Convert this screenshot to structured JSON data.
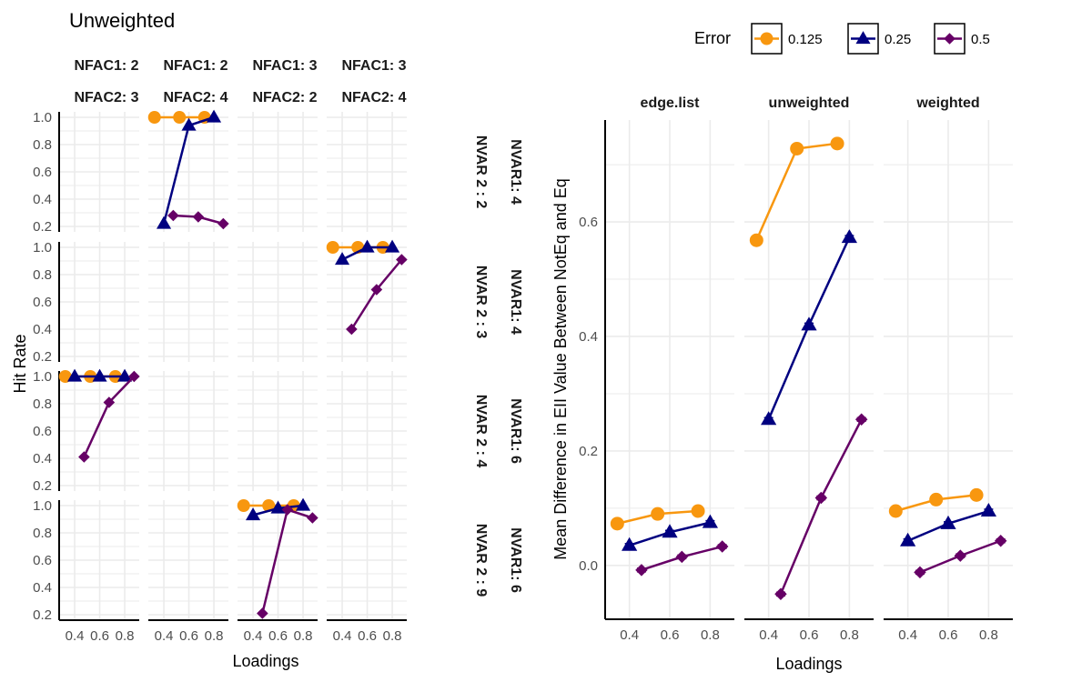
{
  "colors": {
    "0.125": "#F8970F",
    "0.25": "#000080",
    "0.5": "#660066",
    "grid": "#EBEBEB"
  },
  "chart_data": [
    {
      "type": "line",
      "title": "Unweighted",
      "xlabel": "Loadings",
      "ylabel": "Hit Rate",
      "x_ticks": [
        "0.4",
        "0.6",
        "0.8"
      ],
      "y_ticks": [
        "0.2",
        "0.4",
        "0.6",
        "0.8",
        "1.0"
      ],
      "xlim": [
        0.276,
        0.916
      ],
      "ylim": [
        0.16,
        1.04
      ],
      "dodge": 0.075,
      "col_strips": [
        {
          "line1": "NFAC1: 2",
          "line2": "NFAC2: 3"
        },
        {
          "line1": "NFAC1: 2",
          "line2": "NFAC2: 4"
        },
        {
          "line1": "NFAC1: 3",
          "line2": "NFAC2: 2"
        },
        {
          "line1": "NFAC1: 3",
          "line2": "NFAC2: 4"
        }
      ],
      "row_strips": [
        {
          "inner": "NVAR 2 : 2",
          "outer": "NVAR1: 4"
        },
        {
          "inner": "NVAR 2 : 3",
          "outer": "NVAR1: 4"
        },
        {
          "inner": "NVAR 2 : 4",
          "outer": "NVAR1: 6"
        },
        {
          "inner": "NVAR 2 : 9",
          "outer": "NVAR1: 6"
        }
      ],
      "panels": [
        {
          "row": 0,
          "col": 1,
          "series": [
            {
              "name": "0.125",
              "x": [
                0.4,
                0.6,
                0.8
              ],
              "y": [
                1.0,
                1.0,
                1.0
              ]
            },
            {
              "name": "0.25",
              "x": [
                0.4,
                0.6,
                0.8
              ],
              "y": [
                0.22,
                0.94,
                1.0
              ]
            },
            {
              "name": "0.5",
              "x": [
                0.4,
                0.6,
                0.8
              ],
              "y": [
                0.28,
                0.27,
                0.22
              ]
            }
          ]
        },
        {
          "row": 1,
          "col": 3,
          "series": [
            {
              "name": "0.125",
              "x": [
                0.4,
                0.6,
                0.8
              ],
              "y": [
                1.0,
                1.0,
                1.0
              ]
            },
            {
              "name": "0.25",
              "x": [
                0.4,
                0.6,
                0.8
              ],
              "y": [
                0.91,
                1.0,
                1.0
              ]
            },
            {
              "name": "0.5",
              "x": [
                0.4,
                0.6,
                0.8
              ],
              "y": [
                0.4,
                0.69,
                0.91
              ]
            }
          ]
        },
        {
          "row": 2,
          "col": 0,
          "series": [
            {
              "name": "0.125",
              "x": [
                0.4,
                0.6,
                0.8
              ],
              "y": [
                1.0,
                1.0,
                1.0
              ]
            },
            {
              "name": "0.25",
              "x": [
                0.4,
                0.6,
                0.8
              ],
              "y": [
                1.0,
                1.0,
                1.0
              ]
            },
            {
              "name": "0.5",
              "x": [
                0.4,
                0.6,
                0.8
              ],
              "y": [
                0.41,
                0.81,
                1.0
              ]
            }
          ]
        },
        {
          "row": 3,
          "col": 2,
          "series": [
            {
              "name": "0.125",
              "x": [
                0.4,
                0.6,
                0.8
              ],
              "y": [
                1.0,
                1.0,
                1.0
              ]
            },
            {
              "name": "0.25",
              "x": [
                0.4,
                0.6,
                0.8
              ],
              "y": [
                0.93,
                0.98,
                1.0
              ]
            },
            {
              "name": "0.5",
              "x": [
                0.4,
                0.6,
                0.8
              ],
              "y": [
                0.21,
                0.97,
                0.91
              ]
            }
          ]
        }
      ]
    },
    {
      "type": "line",
      "xlabel": "Loadings",
      "ylabel": "Mean Difference in EII Value Between NotEq and Eq",
      "x_ticks": [
        "0.4",
        "0.6",
        "0.8"
      ],
      "y_ticks": [
        "0.0",
        "0.2",
        "0.4",
        "0.6"
      ],
      "xlim": [
        0.28,
        0.92
      ],
      "ylim": [
        -0.094,
        0.778
      ],
      "dodge": 0.06,
      "legend": {
        "title": "Error",
        "position": "top-right",
        "entries": [
          "0.125",
          "0.25",
          "0.5"
        ]
      },
      "panels": [
        {
          "strip": "edge.list",
          "series": [
            {
              "name": "0.125",
              "x": [
                0.4,
                0.6,
                0.8
              ],
              "y": [
                0.073,
                0.09,
                0.095
              ]
            },
            {
              "name": "0.25",
              "x": [
                0.4,
                0.6,
                0.8
              ],
              "y": [
                0.035,
                0.058,
                0.075
              ]
            },
            {
              "name": "0.5",
              "x": [
                0.4,
                0.6,
                0.8
              ],
              "y": [
                -0.008,
                0.015,
                0.033
              ]
            }
          ]
        },
        {
          "strip": "unweighted",
          "series": [
            {
              "name": "0.125",
              "x": [
                0.4,
                0.6,
                0.8
              ],
              "y": [
                0.568,
                0.728,
                0.737
              ]
            },
            {
              "name": "0.25",
              "x": [
                0.4,
                0.6,
                0.8
              ],
              "y": [
                0.255,
                0.42,
                0.573
              ]
            },
            {
              "name": "0.5",
              "x": [
                0.4,
                0.6,
                0.8
              ],
              "y": [
                -0.05,
                0.118,
                0.255
              ]
            }
          ]
        },
        {
          "strip": "weighted",
          "series": [
            {
              "name": "0.125",
              "x": [
                0.4,
                0.6,
                0.8
              ],
              "y": [
                0.095,
                0.115,
                0.123
              ]
            },
            {
              "name": "0.25",
              "x": [
                0.4,
                0.6,
                0.8
              ],
              "y": [
                0.043,
                0.073,
                0.095
              ]
            },
            {
              "name": "0.5",
              "x": [
                0.4,
                0.6,
                0.8
              ],
              "y": [
                -0.012,
                0.017,
                0.043
              ]
            }
          ]
        }
      ]
    }
  ]
}
